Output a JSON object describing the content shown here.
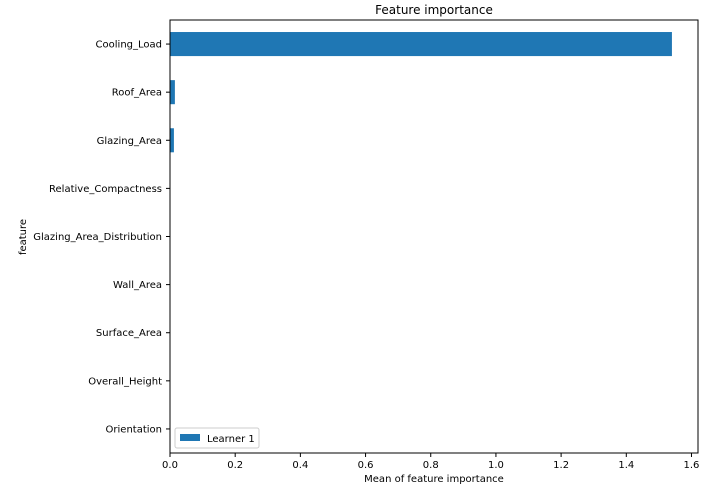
{
  "chart_data": {
    "type": "bar",
    "orientation": "horizontal",
    "title": "Feature importance",
    "xlabel": "Mean of feature importance",
    "ylabel": "feature",
    "categories": [
      "Cooling_Load",
      "Roof_Area",
      "Glazing_Area",
      "Relative_Compactness",
      "Glazing_Area_Distribution",
      "Wall_Area",
      "Surface_Area",
      "Overall_Height",
      "Orientation"
    ],
    "series": [
      {
        "name": "Learner 1",
        "color": "#1f77b4",
        "values": [
          1.54,
          0.015,
          0.012,
          0.001,
          0.0005,
          0.0003,
          0.0002,
          0.0001,
          0.0
        ]
      }
    ],
    "xlim": [
      0,
      1.62
    ],
    "xticks": [
      0,
      0.2,
      0.4,
      0.6,
      0.8,
      1.0,
      1.2,
      1.4,
      1.6
    ],
    "xtick_labels": [
      "0.0",
      "0.2",
      "0.4",
      "0.6",
      "0.8",
      "1.0",
      "1.2",
      "1.4",
      "1.6"
    ],
    "grid": false,
    "legend_position": "lower-left"
  }
}
